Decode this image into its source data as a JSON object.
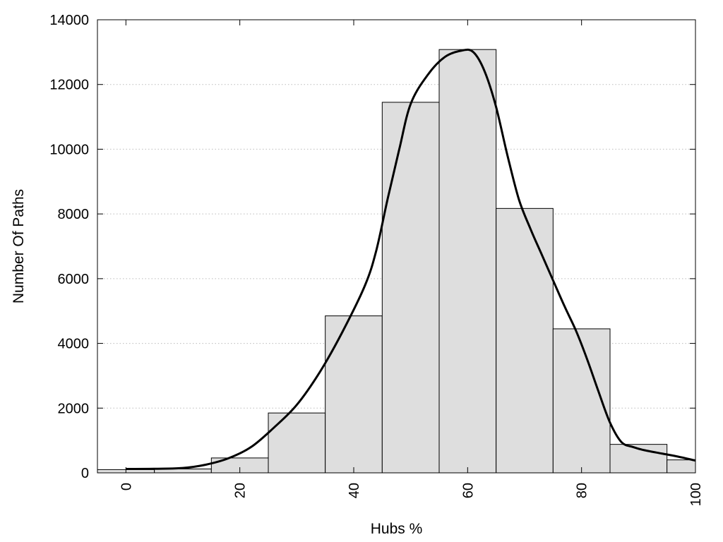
{
  "chart_data": {
    "type": "bar",
    "title": "",
    "xlabel": "Hubs %",
    "ylabel": "Number Of Paths",
    "xlim": [
      -5,
      100
    ],
    "ylim": [
      0,
      14000
    ],
    "x_ticks": [
      "0",
      "20",
      "40",
      "60",
      "80",
      "100"
    ],
    "y_ticks": [
      "0",
      "2000",
      "4000",
      "6000",
      "8000",
      "10000",
      "12000",
      "14000"
    ],
    "grid": "horizontal dotted",
    "legend": "none",
    "bin_width": 10,
    "bin_centers": [
      0,
      10,
      20,
      30,
      40,
      50,
      60,
      70,
      80,
      90,
      100
    ],
    "values": [
      100,
      120,
      460,
      1850,
      4850,
      11450,
      13080,
      8170,
      4450,
      880,
      400
    ],
    "curve": {
      "x": [
        0,
        5,
        10,
        14,
        18,
        22,
        26,
        30,
        34,
        38,
        42,
        44,
        46,
        48,
        50,
        53,
        56,
        59,
        61,
        63,
        65,
        67,
        69,
        71,
        73,
        75,
        77,
        79,
        81,
        83,
        85,
        87,
        89,
        91,
        94,
        97,
        100
      ],
      "y": [
        120,
        125,
        150,
        250,
        450,
        800,
        1400,
        2100,
        3100,
        4350,
        5800,
        6900,
        8500,
        10000,
        11400,
        12300,
        12850,
        13050,
        13000,
        12400,
        11300,
        9800,
        8450,
        7550,
        6750,
        5950,
        5150,
        4400,
        3500,
        2500,
        1550,
        950,
        800,
        700,
        600,
        500,
        380
      ]
    },
    "colors": {
      "bar_fill": "#dedede",
      "bar_stroke": "#000000",
      "curve": "#000000",
      "grid": "#bbbbbb"
    }
  }
}
